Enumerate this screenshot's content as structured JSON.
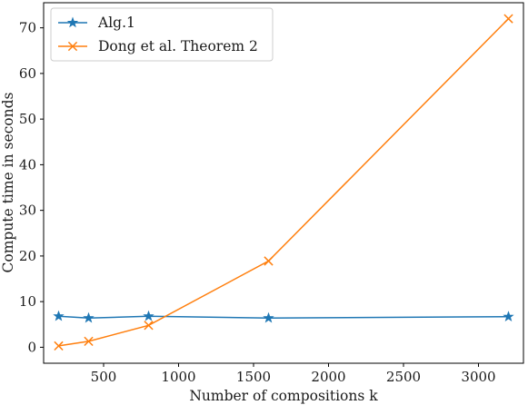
{
  "chart_data": {
    "type": "line",
    "xlabel": "Number of compositions k",
    "ylabel": "Compute time in seconds",
    "xlim": [
      100,
      3300
    ],
    "ylim": [
      -3.5,
      75.5
    ],
    "xticks": [
      500,
      1000,
      1500,
      2000,
      2500,
      3000
    ],
    "yticks": [
      0,
      10,
      20,
      30,
      40,
      50,
      60,
      70
    ],
    "grid": false,
    "legend_position": "top-left",
    "series": [
      {
        "name": "Alg.1",
        "marker": "star",
        "color": "#1f77b4",
        "x": [
          200,
          400,
          800,
          1600,
          3200
        ],
        "y": [
          6.8,
          6.4,
          6.8,
          6.4,
          6.7
        ]
      },
      {
        "name": "Dong et al. Theorem 2",
        "marker": "x",
        "color": "#ff7f0e",
        "x": [
          200,
          400,
          800,
          1600,
          3200
        ],
        "y": [
          0.3,
          1.3,
          4.8,
          18.9,
          72.0
        ]
      }
    ]
  }
}
